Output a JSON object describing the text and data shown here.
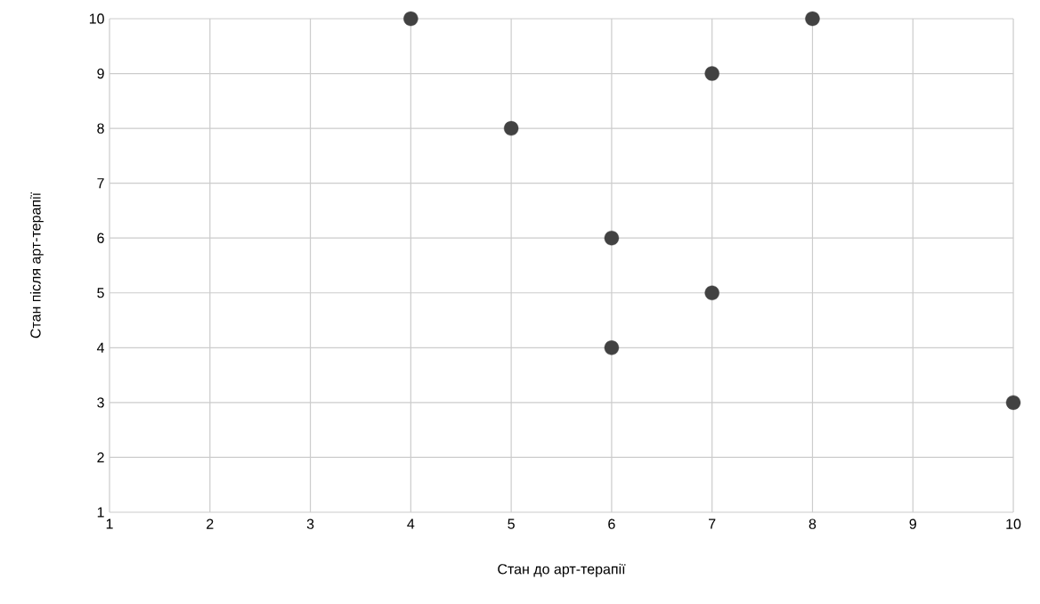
{
  "chart_data": {
    "type": "scatter",
    "xlabel": "Стан до арт-терапії",
    "ylabel": "Стан після арт-терапії",
    "x": [
      4,
      5,
      6,
      6,
      7,
      7,
      8,
      10
    ],
    "values": [
      10,
      8,
      6,
      4,
      9,
      5,
      10,
      3
    ],
    "color": "#424242",
    "marker": "circle",
    "grid": true,
    "xlim": [
      1,
      10
    ],
    "ylim": [
      1,
      10
    ],
    "xticks": [
      1,
      2,
      3,
      4,
      5,
      6,
      7,
      8,
      9,
      10
    ],
    "yticks": [
      1,
      2,
      3,
      4,
      5,
      6,
      7,
      8,
      9,
      10
    ]
  }
}
